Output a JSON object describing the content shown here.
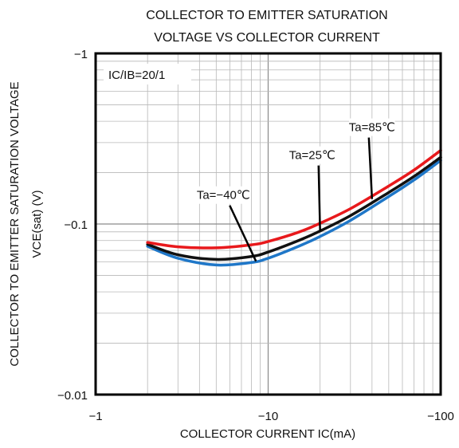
{
  "chart_data": {
    "type": "line",
    "title_line1": "COLLECTOR TO EMITTER SATURATION",
    "title_line2": "VOLTAGE VS COLLECTOR CURRENT",
    "xlabel": "COLLECTOR CURRENT  IC(mA)",
    "ylabel_line1": "COLLECTOR TO EMITTER SATURATION VOLTAGE",
    "ylabel_line2": "VCE(sat) (V)",
    "x_scale": "log",
    "y_scale": "log",
    "xlim": [
      -1,
      -100
    ],
    "ylim": [
      -0.01,
      -1
    ],
    "x_ticks": [
      -1,
      -10,
      -100
    ],
    "x_tick_labels": [
      "−1",
      "−10",
      "−100"
    ],
    "y_ticks": [
      -0.01,
      -0.1,
      -1
    ],
    "y_tick_labels": [
      "−0.01",
      "−0.1",
      "−1"
    ],
    "grid": true,
    "condition_label": "IC/IB=20/1",
    "series": [
      {
        "name": "Ta=85℃",
        "color": "#e8191c",
        "x": [
          -2,
          -3,
          -5,
          -8,
          -10,
          -15,
          -20,
          -30,
          -50,
          -70,
          -100
        ],
        "y": [
          -0.078,
          -0.0735,
          -0.0725,
          -0.0755,
          -0.079,
          -0.0895,
          -0.101,
          -0.123,
          -0.167,
          -0.207,
          -0.27
        ]
      },
      {
        "name": "Ta=25℃",
        "color": "#111111",
        "x": [
          -2,
          -3,
          -5,
          -8,
          -10,
          -15,
          -20,
          -30,
          -50,
          -70,
          -100
        ],
        "y": [
          -0.076,
          -0.066,
          -0.062,
          -0.0645,
          -0.0685,
          -0.08,
          -0.091,
          -0.112,
          -0.153,
          -0.19,
          -0.246
        ]
      },
      {
        "name": "Ta=-40℃",
        "color": "#1f77c8",
        "x": [
          -2,
          -3,
          -5,
          -8,
          -10,
          -15,
          -20,
          -30,
          -50,
          -70,
          -100
        ],
        "y": [
          -0.074,
          -0.063,
          -0.0575,
          -0.0595,
          -0.063,
          -0.074,
          -0.0845,
          -0.105,
          -0.145,
          -0.181,
          -0.236
        ]
      }
    ],
    "annotations": [
      {
        "text": "Ta=85℃",
        "x": -40,
        "y": -0.35,
        "arrow_to": [
          -40,
          -0.14
        ]
      },
      {
        "text": "Ta=25℃",
        "x": -18,
        "y": -0.24,
        "arrow_to": [
          -20,
          -0.091
        ]
      },
      {
        "text": "Ta=−40℃",
        "x": -5.5,
        "y": -0.14,
        "arrow_to": [
          -8.5,
          -0.0605
        ]
      }
    ]
  }
}
